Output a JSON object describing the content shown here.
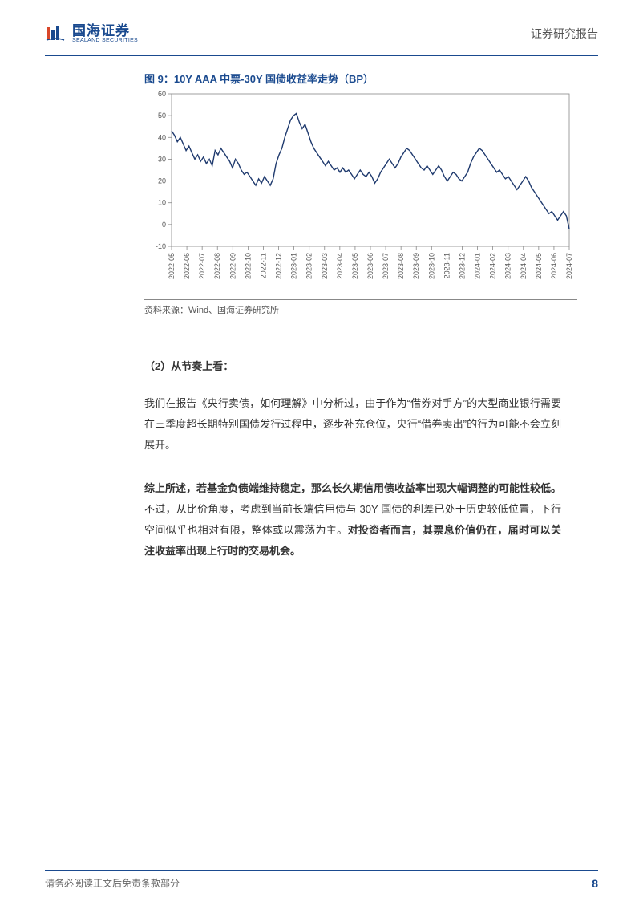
{
  "header": {
    "logo_cn": "国海证券",
    "logo_en": "SEALAND SECURITIES",
    "right_label": "证券研究报告"
  },
  "figure": {
    "title": "图 9：10Y AAA 中票-30Y 国债收益率走势（BP）",
    "source": "资料来源：Wind、国海证券研究所",
    "chart": {
      "type": "line",
      "line_color": "#1f3a6e",
      "line_width": 1.4,
      "background_color": "#ffffff",
      "border_color": "#888888",
      "grid": false,
      "ylim": [
        -10,
        60
      ],
      "ytick_step": 10,
      "yticks": [
        -10,
        0,
        10,
        20,
        30,
        40,
        50,
        60
      ],
      "xlabels": [
        "2022-05",
        "2022-06",
        "2022-07",
        "2022-08",
        "2022-09",
        "2022-10",
        "2022-11",
        "2022-12",
        "2023-01",
        "2023-02",
        "2023-03",
        "2023-04",
        "2023-05",
        "2023-06",
        "2023-07",
        "2023-08",
        "2023-09",
        "2023-10",
        "2023-11",
        "2023-12",
        "2024-01",
        "2024-02",
        "2024-03",
        "2024-04",
        "2024-05",
        "2024-06",
        "2024-07"
      ],
      "xlabel_rotation": -90,
      "tick_fontsize": 9,
      "tick_color": "#555555",
      "values": [
        43,
        41,
        38,
        40,
        37,
        34,
        36,
        33,
        30,
        32,
        29,
        31,
        28,
        30,
        27,
        34,
        32,
        35,
        33,
        31,
        29,
        26,
        30,
        28,
        25,
        23,
        24,
        22,
        20,
        18,
        21,
        19,
        22,
        20,
        18,
        21,
        28,
        32,
        35,
        40,
        44,
        48,
        50,
        51,
        47,
        44,
        46,
        42,
        38,
        35,
        33,
        31,
        29,
        27,
        29,
        27,
        25,
        26,
        24,
        26,
        24,
        25,
        23,
        21,
        23,
        25,
        23,
        22,
        24,
        22,
        19,
        21,
        24,
        26,
        28,
        30,
        28,
        26,
        28,
        31,
        33,
        35,
        34,
        32,
        30,
        28,
        26,
        25,
        27,
        25,
        23,
        25,
        27,
        25,
        22,
        20,
        22,
        24,
        23,
        21,
        20,
        22,
        24,
        28,
        31,
        33,
        35,
        34,
        32,
        30,
        28,
        26,
        24,
        25,
        23,
        21,
        22,
        20,
        18,
        16,
        18,
        20,
        22,
        20,
        17,
        15,
        13,
        11,
        9,
        7,
        5,
        6,
        4,
        2,
        4,
        6,
        4,
        -2
      ]
    }
  },
  "text": {
    "section_head": "（2）从节奏上看：",
    "para1": "我们在报告《央行卖债，如何理解》中分析过，由于作为“借券对手方”的大型商业银行需要在三季度超长期特别国债发行过程中，逐步补充仓位，央行“借券卖出”的行为可能不会立刻展开。",
    "para2_bold1": "综上所述，若基金负债端维持稳定，那么长久期信用债收益率出现大幅调整的可能性较低。",
    "para2_mid": "不过，从比价角度，考虑到当前长端信用债与 30Y 国债的利差已处于历史较低位置，下行空间似乎也相对有限，整体或以震荡为主。",
    "para2_bold2": "对投资者而言，其票息价值仍在，届时可以关注收益率出现上行时的交易机会。"
  },
  "footer": {
    "text": "请务必阅读正文后免责条款部分",
    "page": "8"
  }
}
